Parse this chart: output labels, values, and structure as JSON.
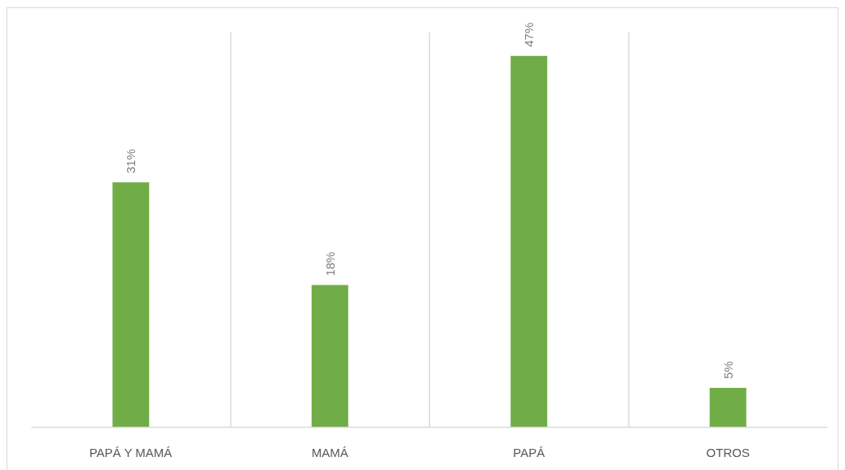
{
  "chart_data": {
    "type": "bar",
    "categories": [
      "PAPÁ Y MAMÁ",
      "MAMÁ",
      "PAPÁ",
      "OTROS"
    ],
    "values": [
      31,
      18,
      47,
      5
    ],
    "color": "#70ad47",
    "value_labels": [
      "31%",
      "18%",
      "47%",
      "5%"
    ],
    "grid": "x"
  }
}
